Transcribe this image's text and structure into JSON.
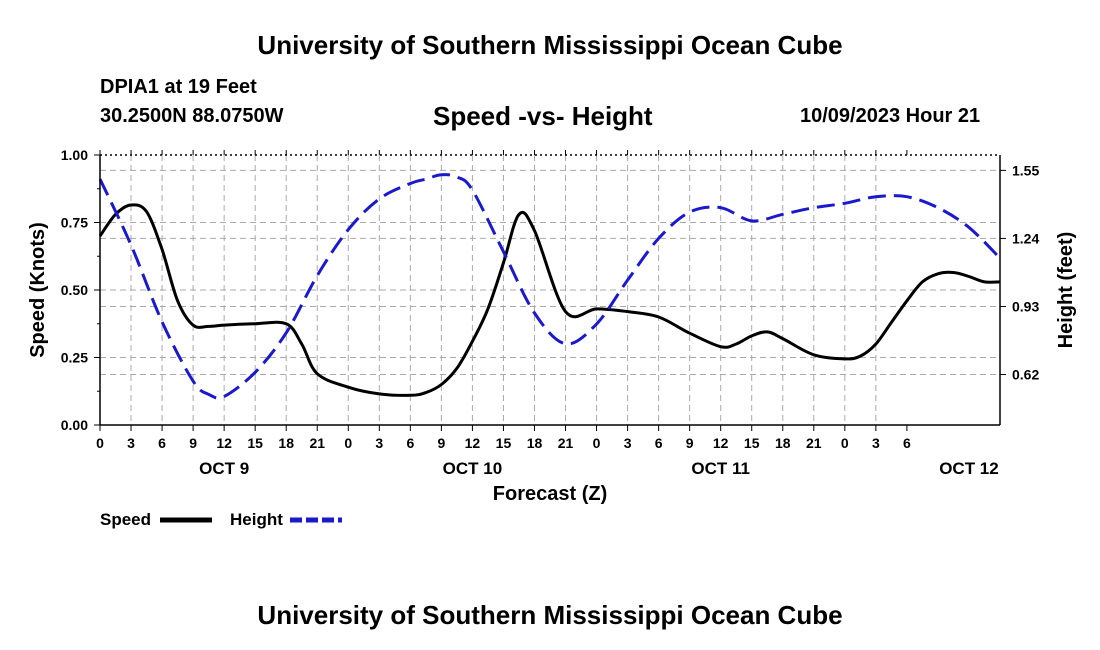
{
  "header": {
    "title": "University of Southern Mississippi Ocean Cube",
    "station": "DPIA1 at 19 Feet",
    "latlon": "30.2500N  88.0750W",
    "subtitle": "Speed -vs- Height",
    "datetime": "10/09/2023 Hour 21"
  },
  "footer": {
    "title": "University of Southern Mississippi Ocean Cube"
  },
  "colors": {
    "speed": "#000000",
    "height": "#1a1acc",
    "grid": "#aaaaaa"
  },
  "chart_data": {
    "type": "line",
    "title": "Speed -vs- Height",
    "xlabel": "Forecast (Z)",
    "ylabel": "Speed (Knots)",
    "y2label": "Height (feet)",
    "x_range_hours": [
      0,
      87
    ],
    "ylim": [
      0,
      1.0
    ],
    "y2lim": [
      0.39,
      1.62
    ],
    "y_ticks": [
      "0.00",
      "0.25",
      "0.50",
      "0.75",
      "1.00"
    ],
    "y_tick_values": [
      0,
      0.25,
      0.5,
      0.75,
      1.0
    ],
    "y2_ticks": [
      "0.62",
      "0.93",
      "1.24",
      "1.55"
    ],
    "y2_tick_values": [
      0.62,
      0.93,
      1.24,
      1.55
    ],
    "x_ticks": [
      "0",
      "3",
      "6",
      "9",
      "12",
      "15",
      "18",
      "21",
      "0",
      "3",
      "6",
      "9",
      "12",
      "15",
      "18",
      "21",
      "0",
      "3",
      "6",
      "9",
      "12",
      "15",
      "18",
      "21",
      "0",
      "3",
      "6"
    ],
    "day_labels": [
      {
        "label": "OCT 9",
        "hour": 12
      },
      {
        "label": "OCT 10",
        "hour": 36
      },
      {
        "label": "OCT 11",
        "hour": 60
      },
      {
        "label": "OCT 12",
        "hour": 84
      }
    ],
    "series": [
      {
        "name": "Speed",
        "axis": "left",
        "style": "solid",
        "x": [
          0,
          1.5,
          3,
          4.5,
          6,
          7.5,
          9,
          10.5,
          12,
          15,
          18,
          19.5,
          21,
          24,
          27,
          30,
          31.5,
          33,
          34.5,
          36,
          37.5,
          39,
          40.5,
          42,
          45,
          48,
          51,
          54,
          57,
          60,
          61.5,
          63,
          64.5,
          66,
          69,
          72,
          73.5,
          75,
          76.5,
          78,
          79.5,
          81,
          82.5,
          84,
          85.5,
          87
        ],
        "values": [
          0.7,
          0.78,
          0.815,
          0.79,
          0.65,
          0.46,
          0.37,
          0.365,
          0.37,
          0.375,
          0.375,
          0.3,
          0.19,
          0.14,
          0.115,
          0.11,
          0.12,
          0.15,
          0.21,
          0.31,
          0.43,
          0.6,
          0.78,
          0.72,
          0.42,
          0.43,
          0.42,
          0.4,
          0.34,
          0.29,
          0.3,
          0.33,
          0.345,
          0.32,
          0.26,
          0.245,
          0.255,
          0.3,
          0.38,
          0.46,
          0.53,
          0.56,
          0.565,
          0.55,
          0.53,
          0.53
        ],
        "legend": "Speed"
      },
      {
        "name": "Height",
        "axis": "right",
        "style": "dashed",
        "x": [
          0,
          3,
          6,
          9,
          10.5,
          12,
          15,
          18,
          21,
          24,
          27,
          30,
          31.5,
          33,
          34.5,
          36,
          39,
          42,
          45,
          48,
          51,
          54,
          57,
          60,
          63,
          66,
          69,
          72,
          75,
          78,
          81,
          84,
          87
        ],
        "values": [
          1.51,
          1.21,
          0.86,
          0.59,
          0.53,
          0.52,
          0.63,
          0.81,
          1.07,
          1.28,
          1.42,
          1.49,
          1.51,
          1.53,
          1.52,
          1.46,
          1.18,
          0.9,
          0.76,
          0.85,
          1.05,
          1.24,
          1.36,
          1.38,
          1.32,
          1.35,
          1.38,
          1.4,
          1.43,
          1.43,
          1.38,
          1.29,
          1.15
        ],
        "legend": "Height"
      }
    ],
    "legend": {
      "speed_label": "Speed",
      "height_label": "Height"
    }
  }
}
